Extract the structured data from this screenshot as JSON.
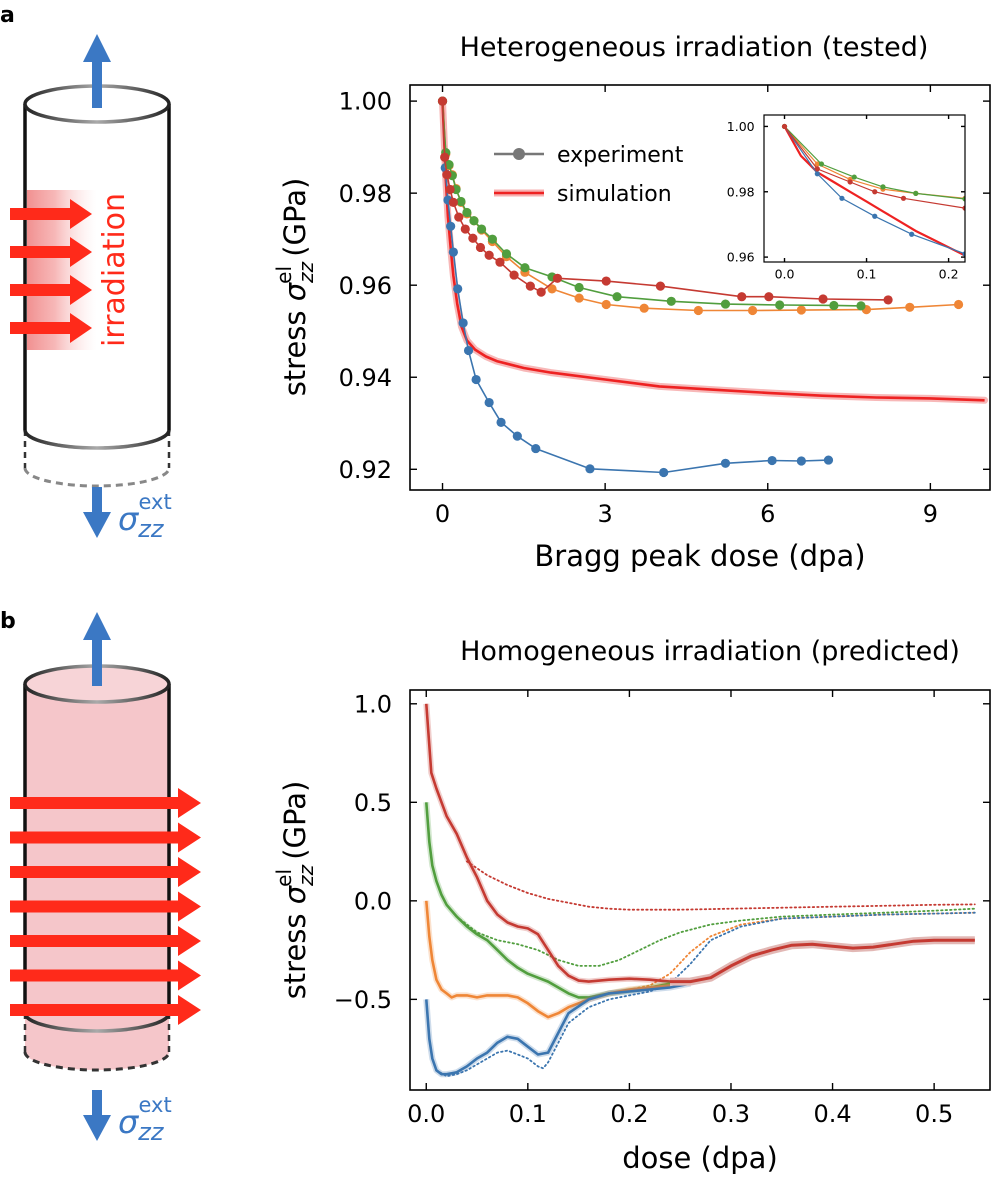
{
  "panels": {
    "a": {
      "letter": "a",
      "illustration": {
        "label": "irradiation",
        "sigma_base": "σ",
        "sigma_sub": "zz",
        "sigma_sup": "ext"
      }
    },
    "b": {
      "letter": "b",
      "illustration": {
        "sigma_base": "σ",
        "sigma_sub": "zz",
        "sigma_sup": "ext"
      }
    }
  },
  "chart_data": [
    {
      "type": "line",
      "title": "Heterogeneous irradiation (tested)",
      "xlabel": "Bragg peak dose (dpa)",
      "ylabel_prefix": "stress ",
      "ylabel_sym": "σ",
      "ylabel_sub": "zz",
      "ylabel_sup": "el",
      "ylabel_suffix": " (GPa)",
      "xlim": [
        -0.6,
        10.1
      ],
      "ylim": [
        0.9155,
        1.0035
      ],
      "xticks": [
        0,
        3,
        6,
        9
      ],
      "xtick_labels": [
        "0",
        "3",
        "6",
        "9"
      ],
      "yticks": [
        0.92,
        0.94,
        0.96,
        0.98,
        1.0
      ],
      "ytick_labels": [
        "0.92",
        "0.94",
        "0.96",
        "0.98",
        "1.00"
      ],
      "colors": {
        "blue": "#3b75af",
        "orange": "#ef8636",
        "green": "#519e3e",
        "red": "#c53a32",
        "sim": "#ee2222",
        "legend_gray": "#777777"
      },
      "legend": {
        "placement": "upper-center",
        "entries": [
          "experiment",
          "simulation"
        ]
      },
      "series": [
        {
          "color": "#3b75af",
          "x": [
            0,
            0.05,
            0.1,
            0.15,
            0.2,
            0.28,
            0.38,
            0.48,
            0.62,
            0.86,
            1.08,
            1.38,
            1.72,
            2.72,
            4.08,
            5.22,
            6.08,
            6.62,
            7.12
          ],
          "y": [
            1.0,
            0.9855,
            0.9785,
            0.9728,
            0.9672,
            0.9592,
            0.9518,
            0.9458,
            0.9395,
            0.9345,
            0.9302,
            0.9272,
            0.9245,
            0.9201,
            0.9193,
            0.9213,
            0.9219,
            0.9218,
            0.922
          ]
        },
        {
          "color": "#ef8636",
          "x": [
            0,
            0.06,
            0.12,
            0.18,
            0.25,
            0.34,
            0.45,
            0.58,
            0.72,
            0.92,
            1.18,
            1.52,
            2.02,
            2.52,
            3.02,
            3.72,
            4.72,
            5.72,
            6.62,
            7.82,
            8.62,
            9.52
          ],
          "y": [
            1.0,
            0.9885,
            0.986,
            0.984,
            0.981,
            0.978,
            0.9755,
            0.974,
            0.972,
            0.9695,
            0.9662,
            0.9628,
            0.9592,
            0.9572,
            0.9558,
            0.955,
            0.9545,
            0.9545,
            0.9546,
            0.9547,
            0.9552,
            0.9558
          ]
        },
        {
          "color": "#519e3e",
          "x": [
            0,
            0.06,
            0.12,
            0.18,
            0.25,
            0.34,
            0.45,
            0.58,
            0.72,
            0.92,
            1.18,
            1.52,
            2.02,
            2.52,
            3.22,
            4.22,
            5.22,
            6.22,
            7.22,
            7.72
          ],
          "y": [
            1.0,
            0.9888,
            0.9862,
            0.9838,
            0.9808,
            0.9782,
            0.9758,
            0.974,
            0.9722,
            0.97,
            0.9668,
            0.9638,
            0.9618,
            0.9595,
            0.9575,
            0.9565,
            0.9559,
            0.9557,
            0.9556,
            0.9555
          ]
        },
        {
          "color": "#c53a32",
          "x": [
            0,
            0.04,
            0.08,
            0.14,
            0.2,
            0.3,
            0.42,
            0.56,
            0.7,
            0.86,
            1.06,
            1.32,
            1.62,
            1.82,
            2.12,
            3.02,
            4.02,
            5.52,
            6.02,
            7.02,
            8.22
          ],
          "y": [
            1.0,
            0.9878,
            0.984,
            0.9808,
            0.978,
            0.9748,
            0.9722,
            0.9702,
            0.9682,
            0.9665,
            0.965,
            0.9622,
            0.9598,
            0.9585,
            0.9615,
            0.9609,
            0.9598,
            0.9575,
            0.9575,
            0.957,
            0.9568
          ]
        }
      ],
      "simulation": {
        "color": "#ee2222",
        "x": [
          0,
          0.03,
          0.06,
          0.1,
          0.15,
          0.2,
          0.27,
          0.35,
          0.45,
          0.6,
          0.8,
          1.0,
          1.5,
          2.0,
          3.0,
          4.0,
          5.0,
          6.0,
          7.0,
          8.0,
          9.0,
          10.0
        ],
        "y": [
          1.0,
          0.992,
          0.983,
          0.975,
          0.968,
          0.962,
          0.956,
          0.951,
          0.948,
          0.946,
          0.9445,
          0.9435,
          0.942,
          0.941,
          0.9395,
          0.938,
          0.9373,
          0.9366,
          0.936,
          0.9356,
          0.9354,
          0.935
        ]
      },
      "inset": {
        "xlim": [
          -0.025,
          0.22
        ],
        "ylim": [
          0.9585,
          1.0035
        ],
        "xticks": [
          0.0,
          0.1,
          0.2
        ],
        "xtick_labels": [
          "0.0",
          "0.1",
          "0.2"
        ],
        "yticks": [
          0.96,
          0.98,
          1.0
        ],
        "ytick_labels": [
          "0.96",
          "0.98",
          "1.00"
        ],
        "series": [
          {
            "color": "#3b75af",
            "x": [
              0,
              0.04,
              0.07,
              0.11,
              0.155,
              0.22
            ],
            "y": [
              1.0,
              0.9855,
              0.978,
              0.9725,
              0.967,
              0.961
            ],
            "lines": [
              [
                0,
                1.0
              ],
              [
                0.04,
                0.9855
              ],
              [
                0.07,
                0.978
              ],
              [
                0.11,
                0.9725
              ],
              [
                0.155,
                0.967
              ],
              [
                0.22,
                0.961
              ]
            ]
          },
          {
            "color": "#ef8636",
            "x": [
              0,
              0.04,
              0.08,
              0.12,
              0.16,
              0.22
            ],
            "y": [
              1.0,
              0.9885,
              0.9838,
              0.9808,
              0.9795,
              0.978
            ],
            "lines": []
          },
          {
            "color": "#519e3e",
            "x": [
              0,
              0.045,
              0.085,
              0.12,
              0.16,
              0.22
            ],
            "y": [
              1.0,
              0.9885,
              0.9845,
              0.9815,
              0.9795,
              0.9778
            ],
            "lines": []
          },
          {
            "color": "#c53a32",
            "x": [
              0,
              0.04,
              0.08,
              0.11,
              0.145,
              0.22
            ],
            "y": [
              1.0,
              0.987,
              0.983,
              0.98,
              0.978,
              0.975
            ],
            "lines": []
          }
        ],
        "simulation": {
          "color": "#ee2222",
          "x": [
            0,
            0.02,
            0.04,
            0.06,
            0.08,
            0.1,
            0.12,
            0.14,
            0.16,
            0.18,
            0.2,
            0.22
          ],
          "y": [
            1.0,
            0.991,
            0.986,
            0.983,
            0.98,
            0.977,
            0.974,
            0.971,
            0.968,
            0.9655,
            0.963,
            0.9605
          ]
        }
      }
    },
    {
      "type": "line",
      "title": "Homogeneous irradiation (predicted)",
      "xlabel": "dose (dpa)",
      "ylabel_prefix": "stress ",
      "ylabel_sym": "σ",
      "ylabel_sub": "zz",
      "ylabel_sup": "el",
      "ylabel_suffix": " (GPa)",
      "xlim": [
        -0.016,
        0.555
      ],
      "ylim": [
        -0.96,
        1.07
      ],
      "xticks": [
        0.0,
        0.1,
        0.2,
        0.3,
        0.4,
        0.5
      ],
      "xtick_labels": [
        "0.0",
        "0.1",
        "0.2",
        "0.3",
        "0.4",
        "0.5"
      ],
      "yticks": [
        -0.5,
        0.0,
        0.5,
        1.0
      ],
      "ytick_labels": [
        "−0.5",
        "0.0",
        "0.5",
        "1.0"
      ],
      "series": [
        {
          "color": "#c53a32",
          "solid": {
            "x": [
              0,
              0.005,
              0.01,
              0.02,
              0.03,
              0.04,
              0.05,
              0.06,
              0.07,
              0.08,
              0.09,
              0.1,
              0.11,
              0.12,
              0.13,
              0.14,
              0.15,
              0.16,
              0.18,
              0.2,
              0.22,
              0.24,
              0.26,
              0.28,
              0.3,
              0.32,
              0.34,
              0.36,
              0.38,
              0.4,
              0.42,
              0.44,
              0.46,
              0.48,
              0.5,
              0.52,
              0.54
            ],
            "y": [
              1.0,
              0.65,
              0.57,
              0.43,
              0.34,
              0.22,
              0.12,
              0.0,
              -0.07,
              -0.11,
              -0.13,
              -0.14,
              -0.17,
              -0.25,
              -0.33,
              -0.38,
              -0.405,
              -0.41,
              -0.4,
              -0.395,
              -0.4,
              -0.41,
              -0.41,
              -0.39,
              -0.33,
              -0.28,
              -0.25,
              -0.225,
              -0.22,
              -0.23,
              -0.24,
              -0.235,
              -0.22,
              -0.205,
              -0.2,
              -0.2,
              -0.2
            ]
          },
          "dotted": {
            "x": [
              0.04,
              0.06,
              0.08,
              0.1,
              0.12,
              0.14,
              0.16,
              0.18,
              0.2,
              0.25,
              0.3,
              0.35,
              0.4,
              0.45,
              0.5,
              0.54
            ],
            "y": [
              0.2,
              0.13,
              0.08,
              0.04,
              0.01,
              -0.01,
              -0.03,
              -0.04,
              -0.045,
              -0.045,
              -0.04,
              -0.035,
              -0.03,
              -0.025,
              -0.02,
              -0.018
            ]
          }
        },
        {
          "color": "#519e3e",
          "solid": {
            "x": [
              0,
              0.003,
              0.006,
              0.01,
              0.015,
              0.02,
              0.03,
              0.04,
              0.05,
              0.06,
              0.07,
              0.08,
              0.09,
              0.1,
              0.11,
              0.12,
              0.13,
              0.14,
              0.15,
              0.16,
              0.18,
              0.2,
              0.22,
              0.24
            ],
            "y": [
              0.5,
              0.3,
              0.18,
              0.1,
              0.03,
              -0.02,
              -0.08,
              -0.13,
              -0.17,
              -0.2,
              -0.25,
              -0.3,
              -0.34,
              -0.37,
              -0.39,
              -0.41,
              -0.44,
              -0.47,
              -0.49,
              -0.49,
              -0.47,
              -0.455,
              -0.44,
              -0.42
            ]
          },
          "dotted": {
            "x": [
              0.03,
              0.05,
              0.07,
              0.09,
              0.11,
              0.13,
              0.15,
              0.17,
              0.19,
              0.21,
              0.23,
              0.25,
              0.28,
              0.31,
              0.35,
              0.4,
              0.45,
              0.5,
              0.54
            ],
            "y": [
              -0.08,
              -0.16,
              -0.2,
              -0.22,
              -0.25,
              -0.3,
              -0.33,
              -0.33,
              -0.3,
              -0.25,
              -0.2,
              -0.16,
              -0.12,
              -0.1,
              -0.08,
              -0.07,
              -0.06,
              -0.05,
              -0.04
            ]
          }
        },
        {
          "color": "#ef8636",
          "solid": {
            "x": [
              0,
              0.003,
              0.006,
              0.01,
              0.015,
              0.02,
              0.025,
              0.03,
              0.04,
              0.05,
              0.06,
              0.07,
              0.08,
              0.09,
              0.1,
              0.11,
              0.12,
              0.13,
              0.14,
              0.16,
              0.18,
              0.2,
              0.22,
              0.24
            ],
            "y": [
              0.0,
              -0.18,
              -0.3,
              -0.4,
              -0.45,
              -0.47,
              -0.49,
              -0.48,
              -0.48,
              -0.49,
              -0.48,
              -0.48,
              -0.48,
              -0.49,
              -0.52,
              -0.56,
              -0.59,
              -0.57,
              -0.54,
              -0.5,
              -0.47,
              -0.45,
              -0.44,
              -0.43
            ]
          },
          "dotted": {
            "x": [
              0.2,
              0.22,
              0.24,
              0.26,
              0.28,
              0.31,
              0.35,
              0.4,
              0.45,
              0.5,
              0.54
            ],
            "y": [
              -0.45,
              -0.43,
              -0.37,
              -0.26,
              -0.18,
              -0.12,
              -0.09,
              -0.08,
              -0.07,
              -0.065,
              -0.06
            ]
          }
        },
        {
          "color": "#3b75af",
          "solid": {
            "x": [
              0,
              0.003,
              0.006,
              0.01,
              0.015,
              0.02,
              0.025,
              0.03,
              0.04,
              0.05,
              0.06,
              0.07,
              0.08,
              0.09,
              0.1,
              0.11,
              0.12,
              0.13,
              0.14,
              0.16,
              0.18,
              0.2,
              0.22,
              0.24,
              0.26
            ],
            "y": [
              -0.5,
              -0.7,
              -0.8,
              -0.86,
              -0.88,
              -0.88,
              -0.875,
              -0.87,
              -0.84,
              -0.8,
              -0.77,
              -0.72,
              -0.69,
              -0.7,
              -0.74,
              -0.78,
              -0.77,
              -0.67,
              -0.57,
              -0.5,
              -0.47,
              -0.46,
              -0.45,
              -0.44,
              -0.42
            ]
          },
          "dotted": {
            "x": [
              0.01,
              0.02,
              0.03,
              0.04,
              0.05,
              0.06,
              0.07,
              0.08,
              0.09,
              0.1,
              0.11,
              0.115,
              0.12,
              0.13,
              0.14,
              0.16,
              0.18,
              0.2,
              0.22,
              0.24,
              0.26,
              0.28,
              0.31,
              0.35,
              0.4,
              0.45,
              0.5,
              0.54
            ],
            "y": [
              -0.86,
              -0.89,
              -0.88,
              -0.86,
              -0.83,
              -0.8,
              -0.77,
              -0.76,
              -0.78,
              -0.8,
              -0.84,
              -0.85,
              -0.82,
              -0.72,
              -0.62,
              -0.54,
              -0.5,
              -0.48,
              -0.46,
              -0.42,
              -0.32,
              -0.2,
              -0.13,
              -0.09,
              -0.08,
              -0.07,
              -0.065,
              -0.06
            ]
          }
        }
      ],
      "common": {
        "color": "#c53a32",
        "x": [
          0.24,
          0.26,
          0.28,
          0.3,
          0.32,
          0.34,
          0.36,
          0.38,
          0.4,
          0.42,
          0.44,
          0.46,
          0.48,
          0.5,
          0.52,
          0.54
        ],
        "y": [
          -0.41,
          -0.41,
          -0.39,
          -0.33,
          -0.28,
          -0.25,
          -0.225,
          -0.22,
          -0.23,
          -0.24,
          -0.235,
          -0.22,
          -0.205,
          -0.2,
          -0.2,
          -0.2
        ]
      }
    }
  ]
}
